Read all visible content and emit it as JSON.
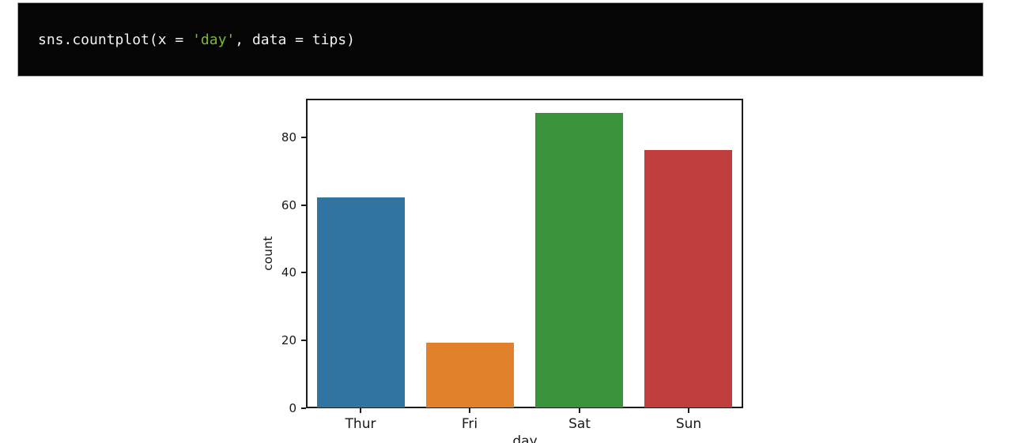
{
  "code_cell": {
    "language": "python",
    "background": "#050505",
    "full_text": "sns.countplot(x = 'day', data = tips)",
    "tokens": [
      {
        "text": "sns.countplot(x = ",
        "style": "plain"
      },
      {
        "text": "'day'",
        "style": "string"
      },
      {
        "text": ", data = tips)",
        "style": "plain"
      }
    ],
    "colors": {
      "plain": "#f2f2f2",
      "string": "#7db83a"
    }
  },
  "chart_data": {
    "type": "bar",
    "title": "",
    "categories": [
      "Thur",
      "Fri",
      "Sat",
      "Sun"
    ],
    "values": [
      62,
      19,
      87,
      76
    ],
    "bar_colors": [
      "#3274a1",
      "#e1812c",
      "#3a923a",
      "#c03d3e"
    ],
    "xlabel": "day",
    "ylabel": "count",
    "yticks": [
      0,
      20,
      40,
      60,
      80
    ],
    "ylim": [
      0,
      91.35
    ],
    "grid": false,
    "legend_position": "none",
    "axis_color": "#1c1c1c",
    "tick_label_color": "#191919"
  }
}
